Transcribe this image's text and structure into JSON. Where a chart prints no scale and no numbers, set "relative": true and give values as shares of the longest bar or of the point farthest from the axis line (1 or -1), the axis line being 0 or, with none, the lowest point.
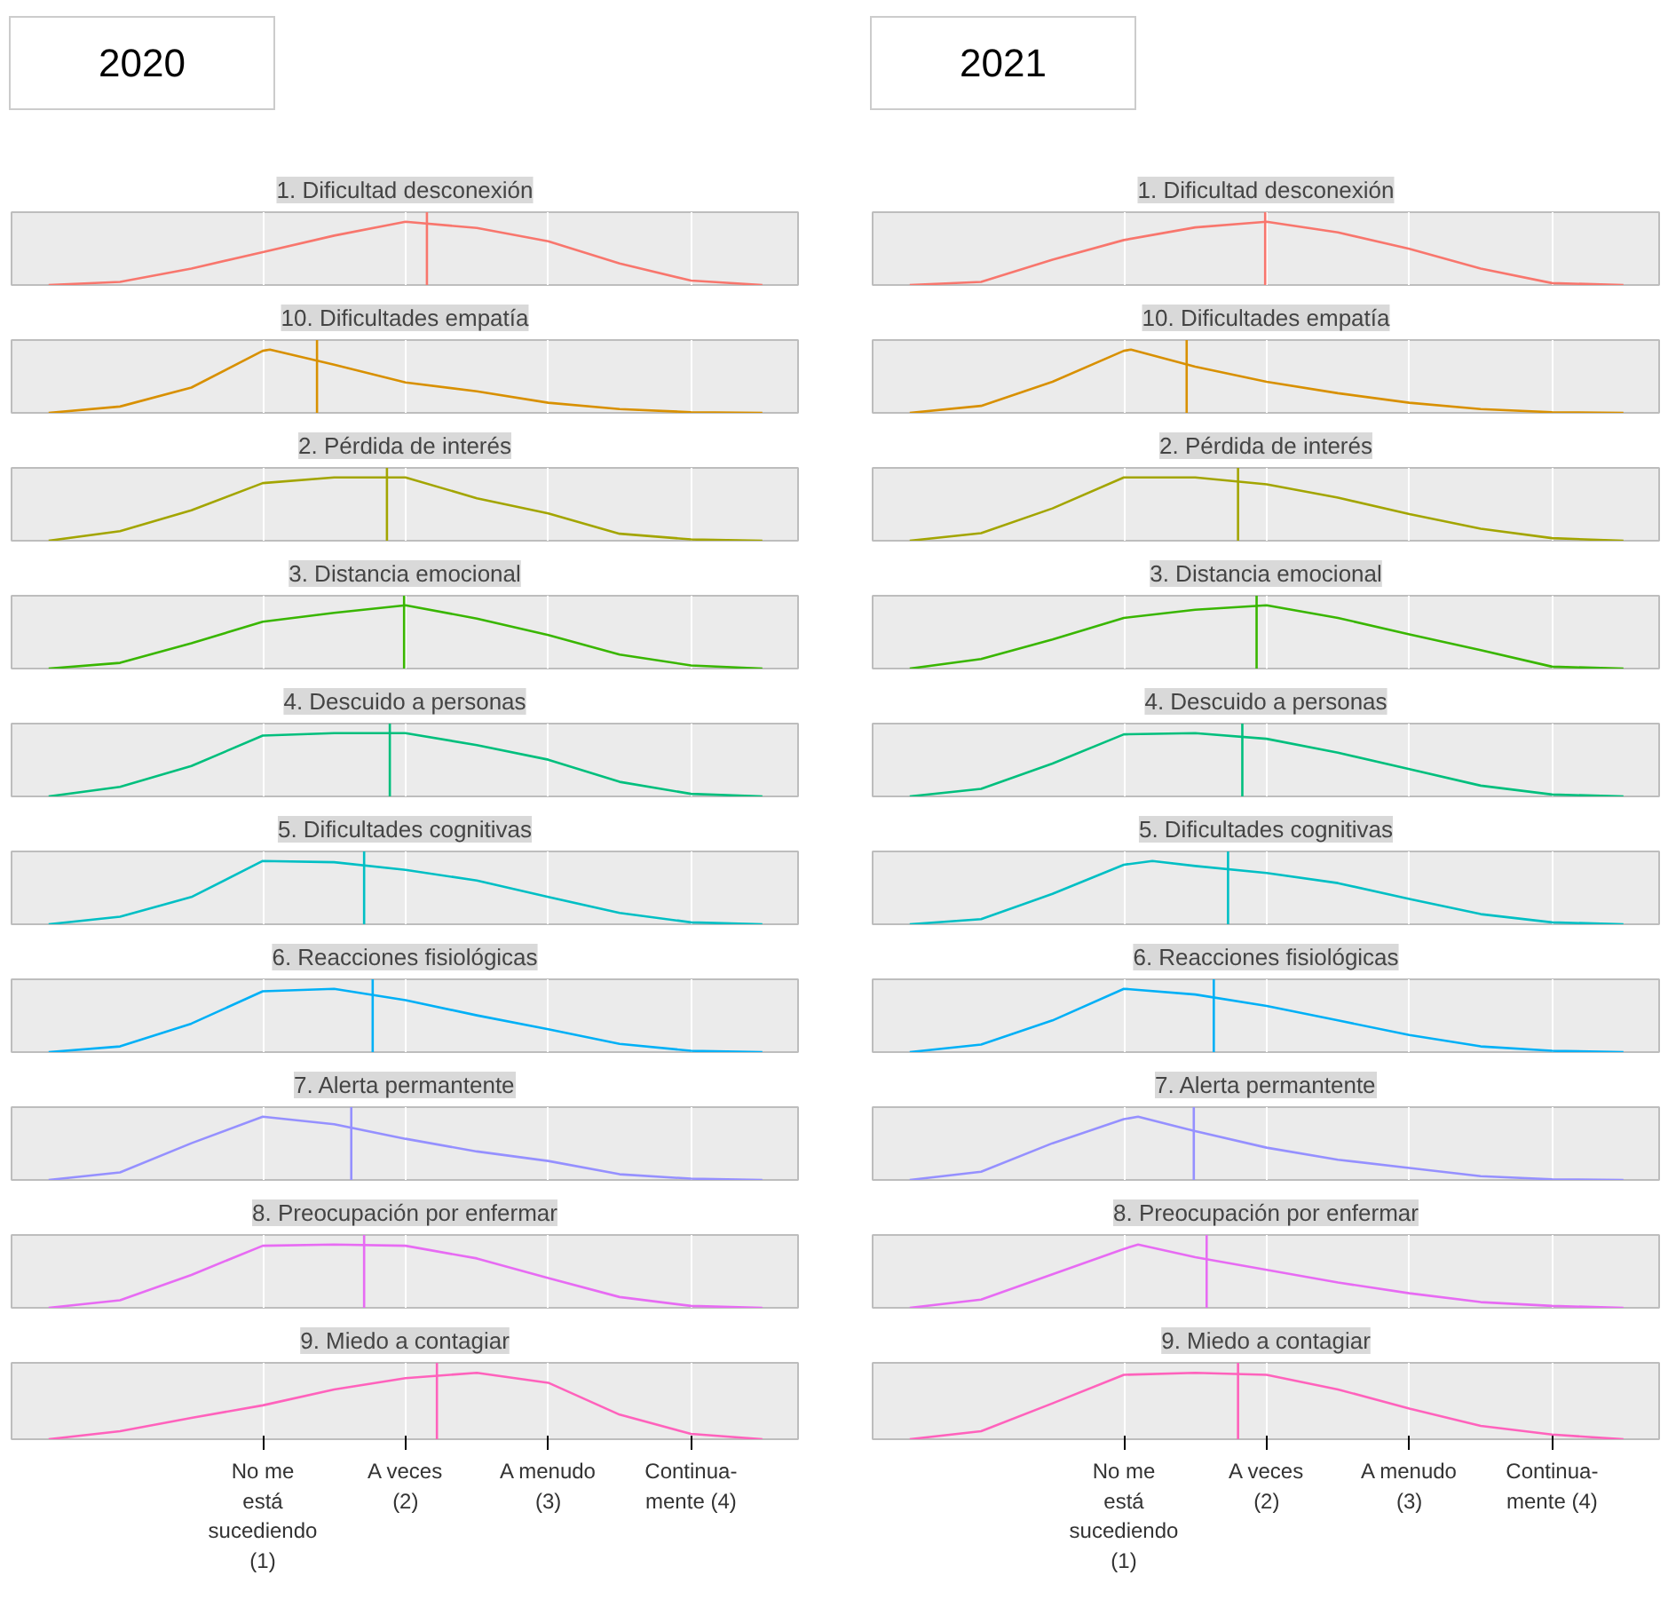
{
  "chart_data": [
    {
      "type": "line",
      "title": "1. Dificultad desconexión",
      "annotations": [
        "2020"
      ],
      "relative": true,
      "grid": "x",
      "tick_labels": false,
      "xlim": [
        -0.76,
        4.75
      ],
      "xticks": [
        1,
        2,
        3,
        4
      ],
      "series": [
        {
          "color": "#f8766d",
          "x": [
            -0.5,
            0,
            0.5,
            1,
            1.5,
            2,
            2.5,
            3,
            3.5,
            4,
            4.5
          ],
          "values": [
            0,
            0.05,
            0.26,
            0.52,
            0.78,
            1,
            0.9,
            0.69,
            0.34,
            0.07,
            0
          ]
        }
      ],
      "ref_lines": [
        {
          "axis": "x",
          "value": 2.15
        }
      ]
    },
    {
      "type": "line",
      "title": "1. Dificultad desconexión",
      "annotations": [
        "2021"
      ],
      "relative": true,
      "grid": "x",
      "tick_labels": false,
      "xlim": [
        -0.76,
        4.75
      ],
      "xticks": [
        1,
        2,
        3,
        4
      ],
      "series": [
        {
          "color": "#f8766d",
          "x": [
            -0.5,
            0,
            0.5,
            1,
            1.5,
            2,
            2.5,
            3,
            3.5,
            4,
            4.5
          ],
          "values": [
            0,
            0.05,
            0.4,
            0.71,
            0.91,
            1,
            0.83,
            0.57,
            0.26,
            0.03,
            0
          ]
        }
      ],
      "ref_lines": [
        {
          "axis": "x",
          "value": 1.99
        }
      ]
    },
    {
      "type": "line",
      "title": "10. Dificultades empatía",
      "relative": true,
      "grid": "x",
      "tick_labels": false,
      "xlim": [
        -0.76,
        4.75
      ],
      "xticks": [
        1,
        2,
        3,
        4
      ],
      "series": [
        {
          "color": "#d89000",
          "x": [
            -0.5,
            0,
            0.5,
            1,
            1.05,
            1.5,
            2,
            2.5,
            3,
            3.5,
            4,
            4.5
          ],
          "values": [
            0,
            0.1,
            0.4,
            0.98,
            1,
            0.76,
            0.48,
            0.34,
            0.16,
            0.06,
            0.01,
            0
          ]
        }
      ],
      "ref_lines": [
        {
          "axis": "x",
          "value": 1.38
        }
      ]
    },
    {
      "type": "line",
      "title": "10. Dificultades empatía",
      "relative": true,
      "grid": "x",
      "tick_labels": false,
      "xlim": [
        -0.76,
        4.75
      ],
      "xticks": [
        1,
        2,
        3,
        4
      ],
      "series": [
        {
          "color": "#d89000",
          "x": [
            -0.5,
            0,
            0.5,
            1,
            1.05,
            1.5,
            2,
            2.5,
            3,
            3.5,
            4,
            4.5
          ],
          "values": [
            0,
            0.11,
            0.49,
            0.98,
            1,
            0.73,
            0.49,
            0.31,
            0.16,
            0.06,
            0.01,
            0
          ]
        }
      ],
      "ref_lines": [
        {
          "axis": "x",
          "value": 1.44
        }
      ]
    },
    {
      "type": "line",
      "title": "2. Pérdida de interés",
      "relative": true,
      "grid": "x",
      "tick_labels": false,
      "xlim": [
        -0.76,
        4.75
      ],
      "xticks": [
        1,
        2,
        3,
        4
      ],
      "series": [
        {
          "color": "#a3a500",
          "x": [
            -0.5,
            0,
            0.5,
            1,
            1.5,
            2,
            2.5,
            3,
            3.5,
            4,
            4.5
          ],
          "values": [
            0,
            0.15,
            0.48,
            0.91,
            1,
            1,
            0.67,
            0.43,
            0.11,
            0.02,
            0
          ]
        }
      ],
      "ref_lines": [
        {
          "axis": "x",
          "value": 1.87
        }
      ]
    },
    {
      "type": "line",
      "title": "2. Pérdida de interés",
      "relative": true,
      "grid": "x",
      "tick_labels": false,
      "xlim": [
        -0.76,
        4.75
      ],
      "xticks": [
        1,
        2,
        3,
        4
      ],
      "series": [
        {
          "color": "#a3a500",
          "x": [
            -0.5,
            0,
            0.5,
            1,
            1.5,
            2,
            2.5,
            3,
            3.5,
            4,
            4.5
          ],
          "values": [
            0,
            0.12,
            0.51,
            1,
            1,
            0.89,
            0.68,
            0.42,
            0.19,
            0.04,
            0
          ]
        }
      ],
      "ref_lines": [
        {
          "axis": "x",
          "value": 1.8
        }
      ]
    },
    {
      "type": "line",
      "title": "3. Distancia emocional",
      "relative": true,
      "grid": "x",
      "tick_labels": false,
      "xlim": [
        -0.76,
        4.75
      ],
      "xticks": [
        1,
        2,
        3,
        4
      ],
      "series": [
        {
          "color": "#39b600",
          "x": [
            -0.5,
            0,
            0.5,
            1,
            1.5,
            2,
            2.5,
            3,
            3.5,
            4,
            4.5
          ],
          "values": [
            0,
            0.09,
            0.4,
            0.74,
            0.88,
            1,
            0.79,
            0.53,
            0.22,
            0.05,
            0
          ]
        }
      ],
      "ref_lines": [
        {
          "axis": "x",
          "value": 1.99
        }
      ]
    },
    {
      "type": "line",
      "title": "3. Distancia emocional",
      "relative": true,
      "grid": "x",
      "tick_labels": false,
      "xlim": [
        -0.76,
        4.75
      ],
      "xticks": [
        1,
        2,
        3,
        4
      ],
      "series": [
        {
          "color": "#39b600",
          "x": [
            -0.5,
            0,
            0.5,
            1,
            1.5,
            2,
            2.5,
            3,
            3.5,
            4,
            4.5
          ],
          "values": [
            0,
            0.15,
            0.46,
            0.8,
            0.93,
            1,
            0.8,
            0.54,
            0.29,
            0.03,
            0
          ]
        }
      ],
      "ref_lines": [
        {
          "axis": "x",
          "value": 1.93
        }
      ]
    },
    {
      "type": "line",
      "title": "4. Descuido a personas",
      "relative": true,
      "grid": "x",
      "tick_labels": false,
      "xlim": [
        -0.76,
        4.75
      ],
      "xticks": [
        1,
        2,
        3,
        4
      ],
      "series": [
        {
          "color": "#00bf7d",
          "x": [
            -0.5,
            0,
            0.5,
            1,
            1.5,
            2,
            2.5,
            3,
            3.5,
            4,
            4.5
          ],
          "values": [
            0,
            0.15,
            0.48,
            0.96,
            1,
            1,
            0.81,
            0.58,
            0.23,
            0.04,
            0
          ]
        }
      ],
      "ref_lines": [
        {
          "axis": "x",
          "value": 1.89
        }
      ]
    },
    {
      "type": "line",
      "title": "4. Descuido a personas",
      "relative": true,
      "grid": "x",
      "tick_labels": false,
      "xlim": [
        -0.76,
        4.75
      ],
      "xticks": [
        1,
        2,
        3,
        4
      ],
      "series": [
        {
          "color": "#00bf7d",
          "x": [
            -0.5,
            0,
            0.5,
            1,
            1.5,
            2,
            2.5,
            3,
            3.5,
            4,
            4.5
          ],
          "values": [
            0,
            0.12,
            0.52,
            0.98,
            1,
            0.91,
            0.69,
            0.43,
            0.17,
            0.03,
            0
          ]
        }
      ],
      "ref_lines": [
        {
          "axis": "x",
          "value": 1.83
        }
      ]
    },
    {
      "type": "line",
      "title": "5. Dificultades cognitivas",
      "relative": true,
      "grid": "x",
      "tick_labels": false,
      "xlim": [
        -0.76,
        4.75
      ],
      "xticks": [
        1,
        2,
        3,
        4
      ],
      "series": [
        {
          "color": "#00bfc4",
          "x": [
            -0.5,
            0,
            0.5,
            1,
            1.5,
            2,
            2.5,
            3,
            3.5,
            4,
            4.5
          ],
          "values": [
            0,
            0.12,
            0.43,
            1,
            0.98,
            0.86,
            0.69,
            0.43,
            0.18,
            0.03,
            0
          ]
        }
      ],
      "ref_lines": [
        {
          "axis": "x",
          "value": 1.71
        }
      ]
    },
    {
      "type": "line",
      "title": "5. Dificultades cognitivas",
      "relative": true,
      "grid": "x",
      "tick_labels": false,
      "xlim": [
        -0.76,
        4.75
      ],
      "xticks": [
        1,
        2,
        3,
        4
      ],
      "series": [
        {
          "color": "#00bfc4",
          "x": [
            -0.5,
            0,
            0.5,
            1,
            1.2,
            1.5,
            2,
            2.5,
            3,
            3.5,
            4,
            4.5
          ],
          "values": [
            0,
            0.08,
            0.48,
            0.94,
            1,
            0.92,
            0.81,
            0.65,
            0.4,
            0.16,
            0.03,
            0
          ]
        }
      ],
      "ref_lines": [
        {
          "axis": "x",
          "value": 1.73
        }
      ]
    },
    {
      "type": "line",
      "title": "6. Reacciones fisiológicas",
      "relative": true,
      "grid": "x",
      "tick_labels": false,
      "xlim": [
        -0.76,
        4.75
      ],
      "xticks": [
        1,
        2,
        3,
        4
      ],
      "series": [
        {
          "color": "#00b0f6",
          "x": [
            -0.5,
            0,
            0.5,
            1,
            1.5,
            2,
            2.5,
            3,
            3.5,
            4,
            4.5
          ],
          "values": [
            0,
            0.09,
            0.45,
            0.96,
            1,
            0.82,
            0.58,
            0.36,
            0.13,
            0.02,
            0
          ]
        }
      ],
      "ref_lines": [
        {
          "axis": "x",
          "value": 1.77
        }
      ]
    },
    {
      "type": "line",
      "title": "6. Reacciones fisiológicas",
      "relative": true,
      "grid": "x",
      "tick_labels": false,
      "xlim": [
        -0.76,
        4.75
      ],
      "xticks": [
        1,
        2,
        3,
        4
      ],
      "series": [
        {
          "color": "#00b0f6",
          "x": [
            -0.5,
            0,
            0.5,
            1,
            1.5,
            2,
            2.5,
            3,
            3.5,
            4,
            4.5
          ],
          "values": [
            0,
            0.12,
            0.5,
            1,
            0.91,
            0.73,
            0.5,
            0.27,
            0.09,
            0.02,
            0
          ]
        }
      ],
      "ref_lines": [
        {
          "axis": "x",
          "value": 1.63
        }
      ]
    },
    {
      "type": "line",
      "title": "7. Alerta permantente",
      "relative": true,
      "grid": "x",
      "tick_labels": false,
      "xlim": [
        -0.76,
        4.75
      ],
      "xticks": [
        1,
        2,
        3,
        4
      ],
      "series": [
        {
          "color": "#9590ff",
          "x": [
            -0.5,
            0,
            0.5,
            1,
            1.5,
            2,
            2.5,
            3,
            3.5,
            4,
            4.5
          ],
          "values": [
            0,
            0.12,
            0.58,
            1,
            0.88,
            0.65,
            0.45,
            0.3,
            0.09,
            0.02,
            0
          ]
        }
      ],
      "ref_lines": [
        {
          "axis": "x",
          "value": 1.62
        }
      ]
    },
    {
      "type": "line",
      "title": "7. Alerta permantente",
      "relative": true,
      "grid": "x",
      "tick_labels": false,
      "xlim": [
        -0.76,
        4.75
      ],
      "xticks": [
        1,
        2,
        3,
        4
      ],
      "series": [
        {
          "color": "#9590ff",
          "x": [
            -0.5,
            0,
            0.5,
            1,
            1.1,
            1.5,
            2,
            2.5,
            3,
            3.5,
            4,
            4.5
          ],
          "values": [
            0,
            0.13,
            0.58,
            0.96,
            1,
            0.77,
            0.51,
            0.32,
            0.19,
            0.06,
            0.01,
            0
          ]
        }
      ],
      "ref_lines": [
        {
          "axis": "x",
          "value": 1.49
        }
      ]
    },
    {
      "type": "line",
      "title": "8. Preocupación por enfermar",
      "relative": true,
      "grid": "x",
      "tick_labels": false,
      "xlim": [
        -0.76,
        4.75
      ],
      "xticks": [
        1,
        2,
        3,
        4
      ],
      "series": [
        {
          "color": "#e76bf3",
          "x": [
            -0.5,
            0,
            0.5,
            1,
            1.5,
            2,
            2.5,
            3,
            3.5,
            4,
            4.5
          ],
          "values": [
            0,
            0.12,
            0.52,
            0.98,
            1,
            0.98,
            0.78,
            0.47,
            0.17,
            0.03,
            0
          ]
        }
      ],
      "ref_lines": [
        {
          "axis": "x",
          "value": 1.71
        }
      ]
    },
    {
      "type": "line",
      "title": "8. Preocupación por enfermar",
      "relative": true,
      "grid": "x",
      "tick_labels": false,
      "xlim": [
        -0.76,
        4.75
      ],
      "xticks": [
        1,
        2,
        3,
        4
      ],
      "series": [
        {
          "color": "#e76bf3",
          "x": [
            -0.5,
            0,
            0.5,
            1,
            1.1,
            1.5,
            2,
            2.5,
            3,
            3.5,
            4,
            4.5
          ],
          "values": [
            0,
            0.13,
            0.53,
            0.93,
            1,
            0.8,
            0.6,
            0.4,
            0.23,
            0.09,
            0.03,
            0
          ]
        }
      ],
      "ref_lines": [
        {
          "axis": "x",
          "value": 1.58
        }
      ]
    },
    {
      "type": "line",
      "title": "9. Miedo a contagiar",
      "relative": true,
      "grid": "x",
      "tick_labels": "x",
      "xlim": [
        -0.76,
        4.75
      ],
      "xticks": [
        {
          "value": 1,
          "label": "No me\nestá\nsucediendo\n(1)"
        },
        {
          "value": 2,
          "label": "A veces\n(2)"
        },
        {
          "value": 3,
          "label": "A menudo\n(3)"
        },
        {
          "value": 4,
          "label": "Continua-\nmente (4)"
        }
      ],
      "series": [
        {
          "color": "#ff62bc",
          "x": [
            -0.5,
            0,
            0.5,
            1,
            1.5,
            2,
            2.5,
            3,
            3.5,
            4,
            4.5
          ],
          "values": [
            0,
            0.12,
            0.32,
            0.51,
            0.75,
            0.92,
            1,
            0.85,
            0.37,
            0.08,
            0
          ]
        }
      ],
      "ref_lines": [
        {
          "axis": "x",
          "value": 2.22
        }
      ]
    },
    {
      "type": "line",
      "title": "9. Miedo a contagiar",
      "relative": true,
      "grid": "x",
      "tick_labels": "x",
      "xlim": [
        -0.76,
        4.75
      ],
      "xticks": [
        {
          "value": 1,
          "label": "No me\nestá\nsucediendo\n(1)"
        },
        {
          "value": 2,
          "label": "A veces\n(2)"
        },
        {
          "value": 3,
          "label": "A menudo\n(3)"
        },
        {
          "value": 4,
          "label": "Continua-\nmente (4)"
        }
      ],
      "series": [
        {
          "color": "#ff62bc",
          "x": [
            -0.5,
            0,
            0.5,
            1,
            1.5,
            2,
            2.5,
            3,
            3.5,
            4,
            4.5
          ],
          "values": [
            0,
            0.12,
            0.54,
            0.97,
            1,
            0.97,
            0.75,
            0.46,
            0.2,
            0.07,
            0
          ]
        }
      ],
      "ref_lines": [
        {
          "axis": "x",
          "value": 1.8
        }
      ]
    }
  ]
}
